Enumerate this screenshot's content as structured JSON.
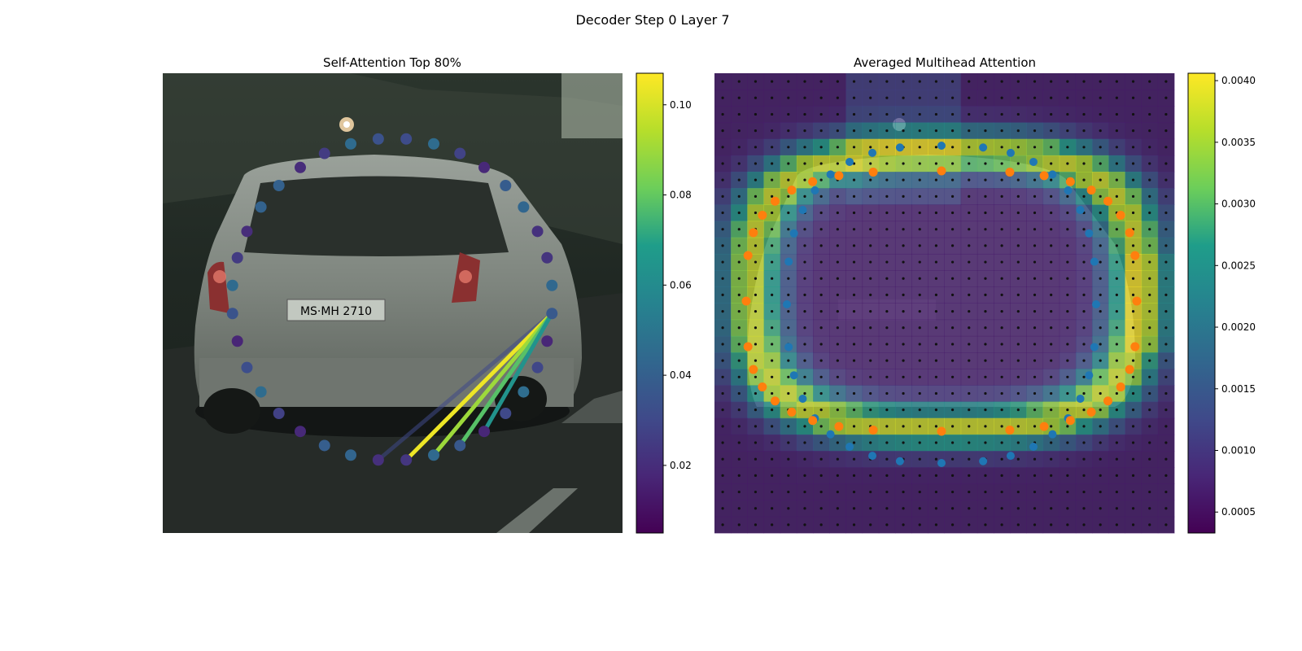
{
  "figure": {
    "title": "Decoder Step 0 Layer 7"
  },
  "colors": {
    "viridis": [
      "#440154",
      "#482777",
      "#3f4a8a",
      "#31678e",
      "#26838f",
      "#1f9d8a",
      "#6cce5a",
      "#b6de2b",
      "#fee825"
    ],
    "tab_blue": "#1f77b4",
    "tab_orange": "#ff7f0e",
    "grid_dot": "#111111"
  },
  "chart_data": [
    {
      "type": "scatter",
      "title": "Self-Attention Top 80%",
      "xlabel": "",
      "ylabel": "",
      "background": "photo: rear view of a silver hatchback car on a city street",
      "grid": false,
      "point_count": 36,
      "query_point_index": 9,
      "attention_links": [
        {
          "to": 18,
          "weight": 0.03
        },
        {
          "to": 17,
          "weight": 0.104
        },
        {
          "to": 16,
          "weight": 0.09
        },
        {
          "to": 15,
          "weight": 0.078
        },
        {
          "to": 14,
          "weight": 0.064
        }
      ],
      "colorbar": {
        "ticks": [
          0.02,
          0.04,
          0.06,
          0.08,
          0.1
        ],
        "ylim": [
          0.005,
          0.107
        ],
        "tick_labels": [
          "0.02",
          "0.04",
          "0.06",
          "0.08",
          "0.10"
        ]
      }
    },
    {
      "type": "heatmap",
      "title": "Averaged Multihead Attention",
      "xlabel": "",
      "ylabel": "",
      "background": "photo: rear view of a silver hatchback car on a city street",
      "grid_shape": [
        28,
        28
      ],
      "grid_dots": true,
      "series": [
        {
          "marker": "blue points (inner contour)",
          "count": 36
        },
        {
          "marker": "orange points (outer contour)",
          "count": 36
        }
      ],
      "colorbar": {
        "ticks": [
          0.0005,
          0.001,
          0.0015,
          0.002,
          0.0025,
          0.003,
          0.0035,
          0.004
        ],
        "ylim": [
          0.00033,
          0.00406
        ],
        "tick_labels": [
          "0.0005",
          "0.0010",
          "0.0015",
          "0.0020",
          "0.0025",
          "0.0030",
          "0.0035",
          "0.0040"
        ]
      }
    }
  ]
}
